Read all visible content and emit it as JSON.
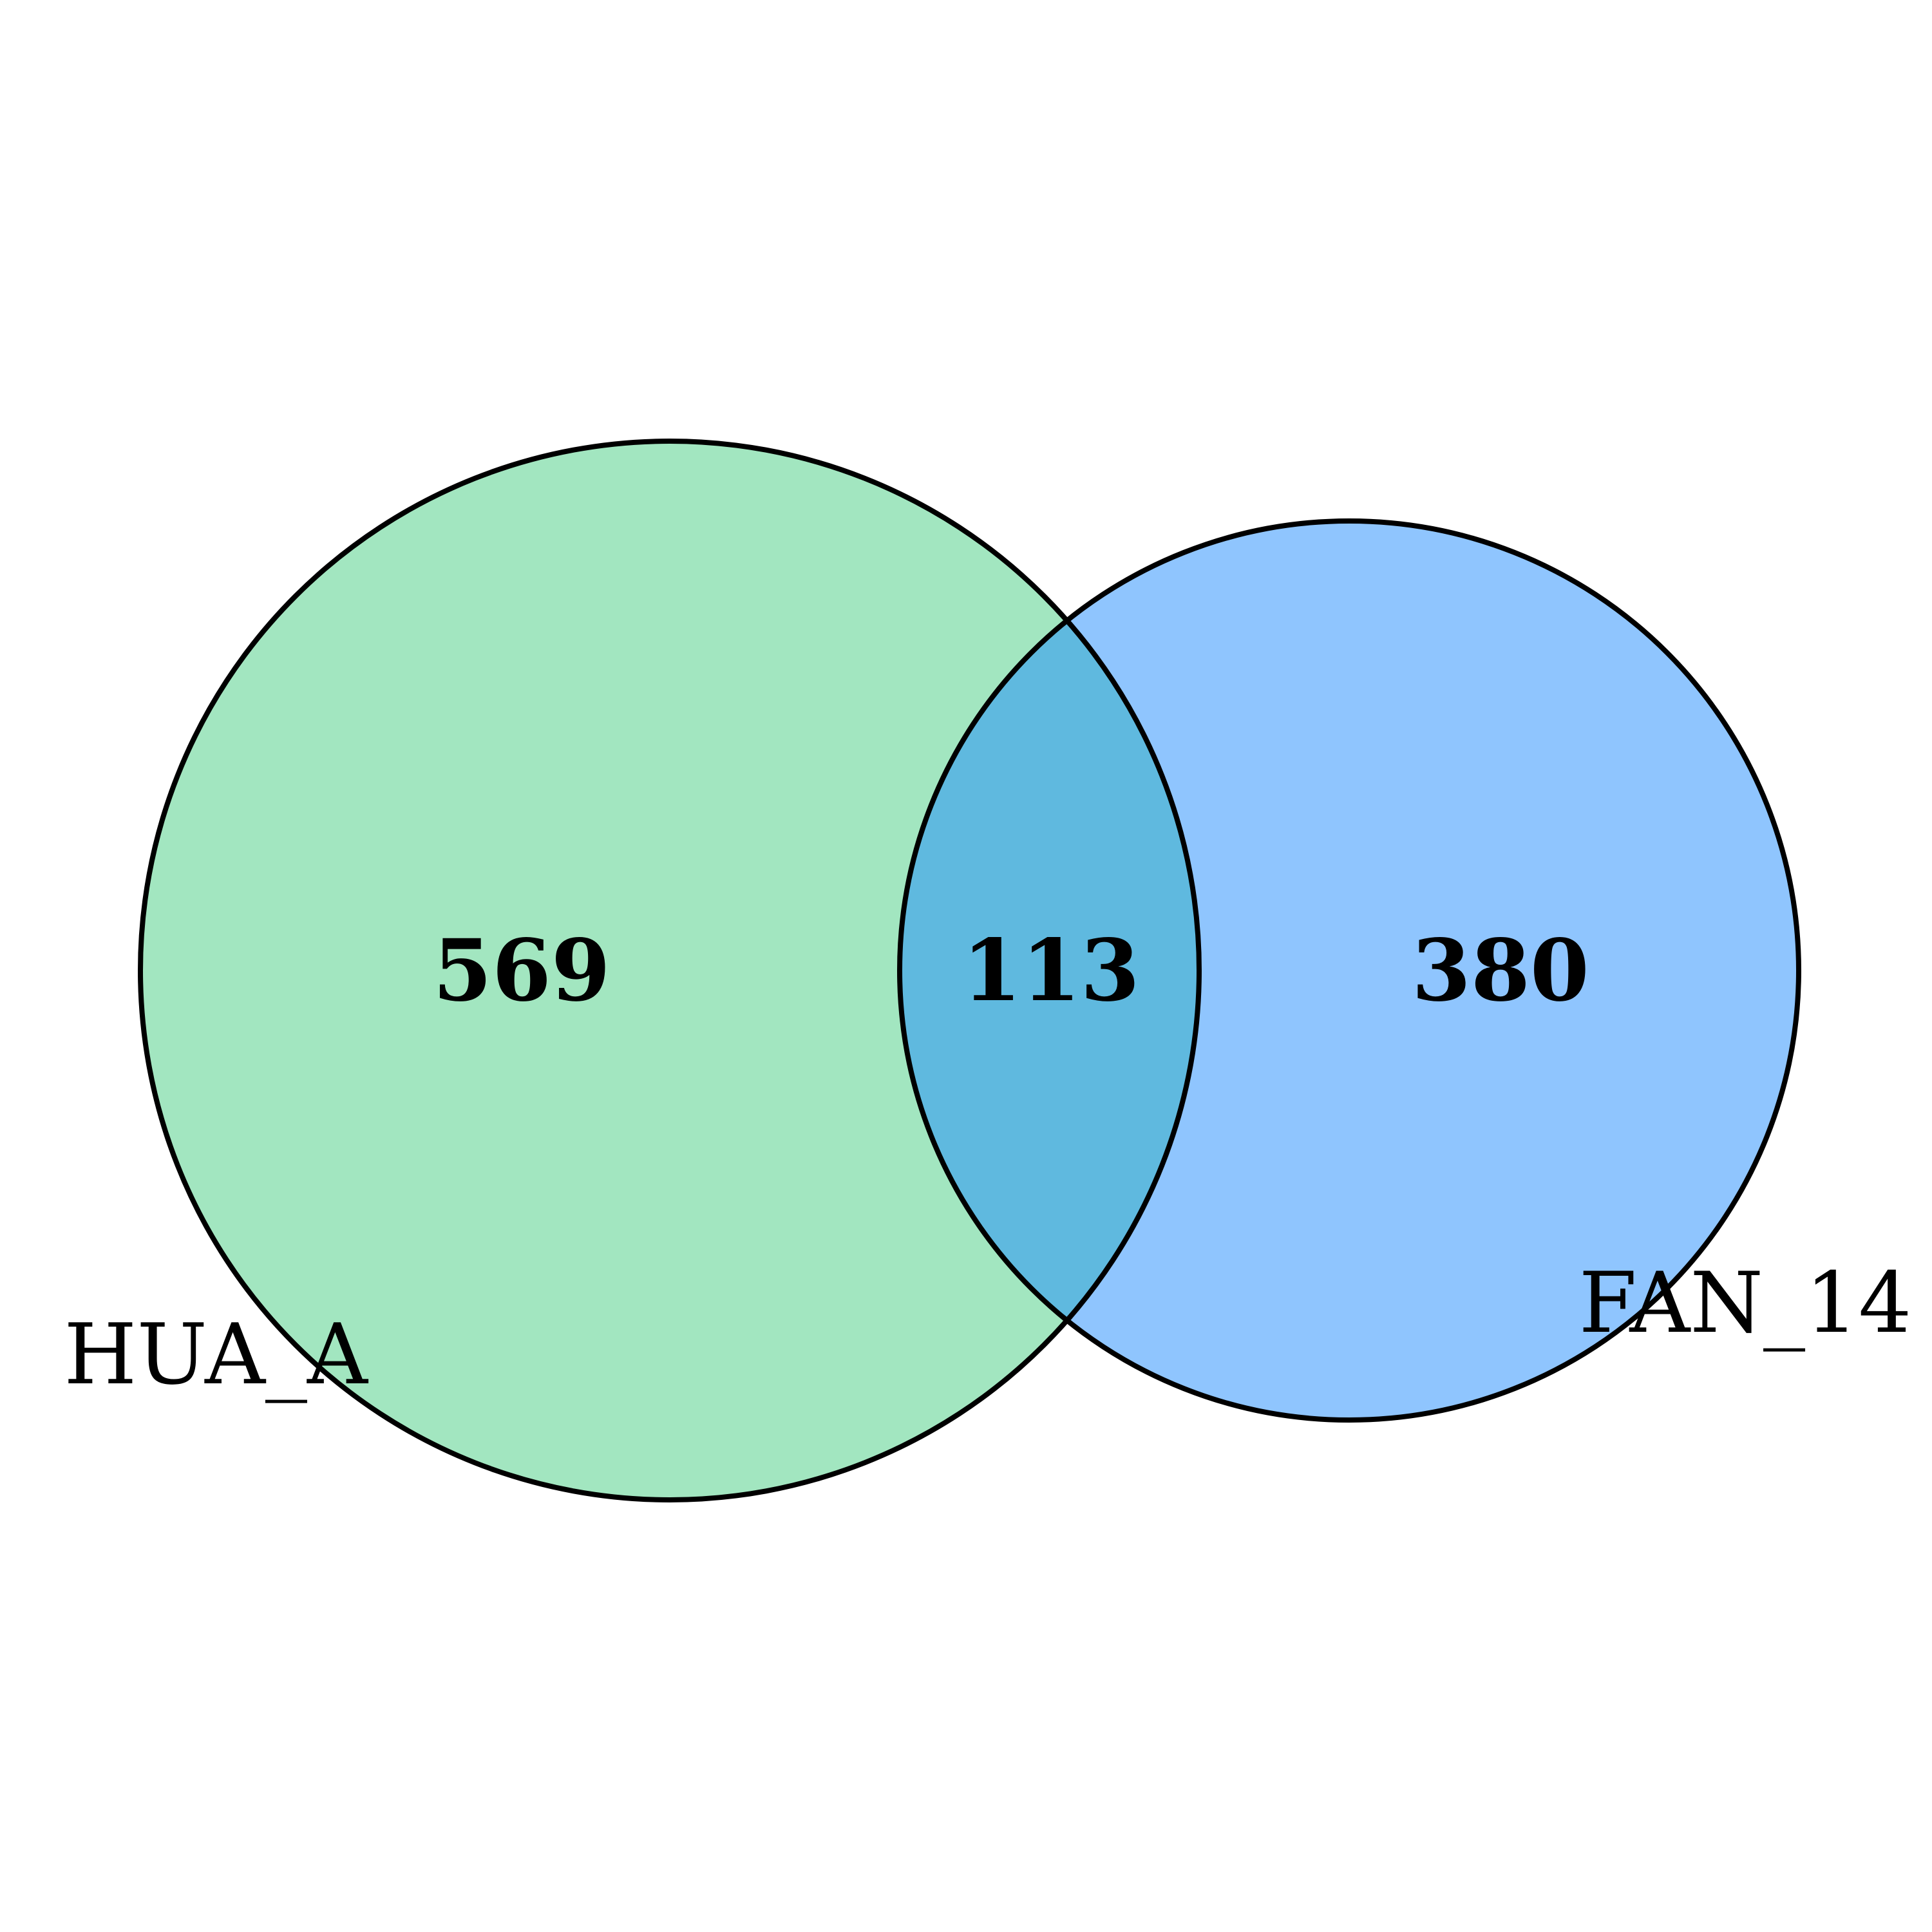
{
  "diagram": {
    "type": "venn2",
    "sets": [
      {
        "name": "HUA_A",
        "only_count": "569",
        "color": "#a2e6c0"
      },
      {
        "name": "FAN_14",
        "only_count": "380",
        "color": "#8fc5fe"
      }
    ],
    "intersection": {
      "count": "113",
      "color": "#5fb9df"
    },
    "outline_color": "#000000"
  }
}
